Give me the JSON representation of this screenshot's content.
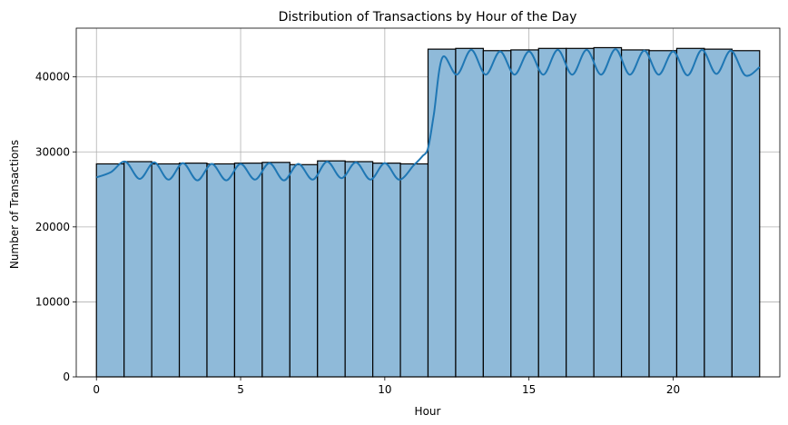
{
  "chart_data": {
    "type": "bar",
    "title": "Distribution of Transactions by Hour of the Day",
    "xlabel": "Hour",
    "ylabel": "Number of Transactions",
    "xlim": [
      -0.7,
      23.7
    ],
    "ylim": [
      0,
      46500
    ],
    "x_ticks": [
      0,
      5,
      10,
      15,
      20
    ],
    "y_ticks": [
      0,
      10000,
      20000,
      30000,
      40000
    ],
    "grid": true,
    "bar_color": "#8fbad9",
    "edge_color": "#000000",
    "kde_color": "#1f77b4",
    "bins": {
      "edges": [
        0,
        0.9583,
        1.9167,
        2.875,
        3.8333,
        4.7917,
        5.75,
        6.7083,
        7.6667,
        8.625,
        9.5833,
        10.5417,
        11.5,
        12.4583,
        13.4167,
        14.375,
        15.3333,
        16.2917,
        17.25,
        18.2083,
        19.1667,
        20.125,
        21.0833,
        22.0417,
        23
      ],
      "values": [
        28400,
        28700,
        28400,
        28500,
        28400,
        28500,
        28600,
        28300,
        28800,
        28700,
        28500,
        28400,
        43700,
        43800,
        43500,
        43600,
        43800,
        43800,
        43900,
        43600,
        43500,
        43800,
        43700,
        43500
      ]
    },
    "kde": {
      "x": [
        0,
        0.5,
        1,
        1.5,
        2,
        2.5,
        3,
        3.5,
        4,
        4.5,
        5,
        5.5,
        6,
        6.5,
        7,
        7.5,
        8,
        8.5,
        9,
        9.5,
        10,
        10.5,
        11,
        11.3,
        11.5,
        11.7,
        12,
        12.5,
        13,
        13.5,
        14,
        14.5,
        15,
        15.5,
        16,
        16.5,
        17,
        17.5,
        18,
        18.5,
        19,
        19.5,
        20,
        20.5,
        21,
        21.5,
        22,
        22.5,
        23
      ],
      "y": [
        26600,
        27300,
        28700,
        26400,
        28600,
        26300,
        28500,
        26200,
        28400,
        26200,
        28400,
        26300,
        28500,
        26200,
        28400,
        26300,
        28700,
        26500,
        28600,
        26300,
        28500,
        26300,
        28200,
        29400,
        30500,
        35000,
        42600,
        40300,
        43600,
        40300,
        43400,
        40300,
        43400,
        40300,
        43600,
        40300,
        43600,
        40300,
        43700,
        40300,
        43500,
        40300,
        43400,
        40200,
        43600,
        40400,
        43500,
        40200,
        41300
      ]
    }
  }
}
